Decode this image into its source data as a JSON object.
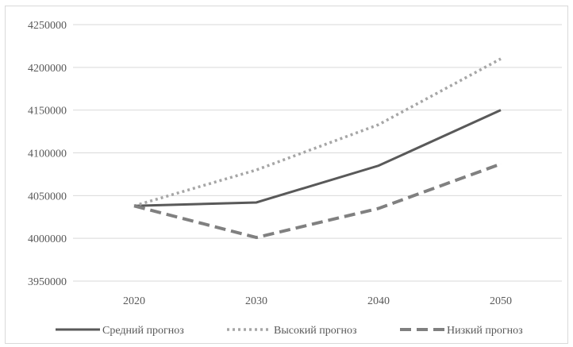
{
  "chart_data": {
    "type": "line",
    "title": "",
    "xlabel": "",
    "ylabel": "",
    "categories": [
      "2020",
      "2030",
      "2040",
      "2050"
    ],
    "ylim": [
      3950000,
      4250000
    ],
    "yticks": [
      "3950000",
      "4000000",
      "4050000",
      "4100000",
      "4150000",
      "4200000",
      "4250000"
    ],
    "grid": true,
    "legend_position": "bottom",
    "series": [
      {
        "name": "Средний прогноз",
        "values": [
          4038000,
          4042000,
          4085000,
          4150000
        ],
        "color": "#595959",
        "style": "solid"
      },
      {
        "name": "Высокий прогноз",
        "values": [
          4038000,
          4080000,
          4133000,
          4210000
        ],
        "color": "#a6a6a6",
        "style": "dotted"
      },
      {
        "name": "Низкий прогноз",
        "values": [
          4038000,
          4001000,
          4035000,
          4087000
        ],
        "color": "#808080",
        "style": "dashed"
      }
    ]
  }
}
